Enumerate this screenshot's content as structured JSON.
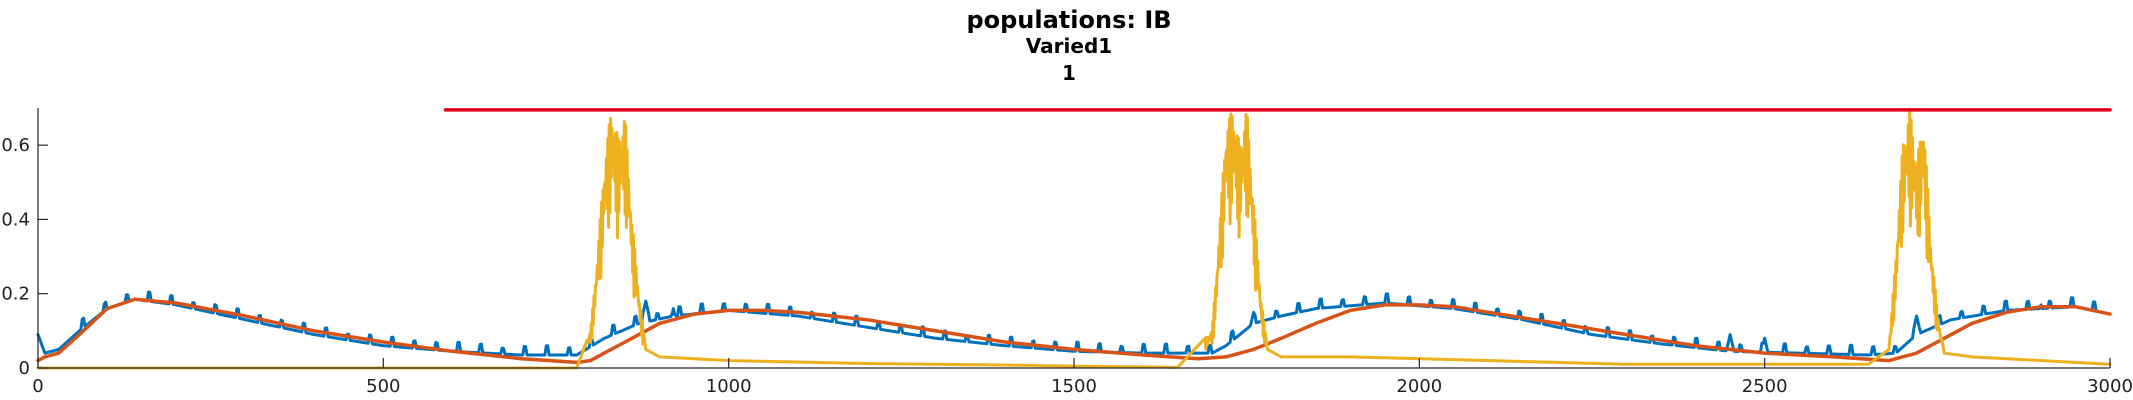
{
  "chart_data": {
    "type": "line",
    "title": "populations: IB",
    "subtitle_1": "Varied1",
    "subtitle_2": "1",
    "xlabel": "",
    "ylabel": "",
    "xlim": [
      0,
      3000
    ],
    "ylim": [
      0,
      0.7
    ],
    "grid": false,
    "legend": "none",
    "x_ticks": [
      0,
      500,
      1000,
      1500,
      2000,
      2500,
      3000
    ],
    "x_tick_labels": [
      "0",
      "500",
      "1000",
      "1500",
      "2000",
      "2500",
      "3000"
    ],
    "y_ticks": [
      0,
      0.2,
      0.4,
      0.6
    ],
    "y_tick_labels": [
      "0",
      "0.2",
      "0.4",
      "0.6"
    ],
    "series": [
      {
        "color": "#0072BD",
        "kind": "spiky",
        "x": [
          0,
          10,
          30,
          60,
          100,
          140,
          200,
          300,
          400,
          500,
          600,
          700,
          780,
          820,
          870,
          920,
          1000,
          1100,
          1200,
          1300,
          1400,
          1500,
          1600,
          1700,
          1720,
          1760,
          1800,
          1850,
          1950,
          2050,
          2150,
          2250,
          2350,
          2450,
          2550,
          2650,
          2690,
          2720,
          2770,
          2850,
          2950,
          3000
        ],
        "y": [
          0.09,
          0.04,
          0.05,
          0.1,
          0.16,
          0.185,
          0.17,
          0.13,
          0.09,
          0.06,
          0.045,
          0.035,
          0.035,
          0.08,
          0.12,
          0.14,
          0.155,
          0.14,
          0.11,
          0.08,
          0.06,
          0.045,
          0.04,
          0.04,
          0.06,
          0.12,
          0.14,
          0.16,
          0.175,
          0.16,
          0.13,
          0.09,
          0.065,
          0.045,
          0.04,
          0.035,
          0.04,
          0.09,
          0.13,
          0.155,
          0.165,
          0.145
        ],
        "spikes": [
          [
            880,
            0.18
          ],
          [
            920,
            0.16
          ],
          [
            1760,
            0.15
          ],
          [
            1850,
            0.16
          ],
          [
            2450,
            0.09
          ],
          [
            2500,
            0.08
          ],
          [
            2720,
            0.14
          ],
          [
            2900,
            0.17
          ]
        ]
      },
      {
        "color": "#D95319",
        "kind": "smooth",
        "x": [
          0,
          10,
          30,
          60,
          100,
          140,
          200,
          300,
          400,
          500,
          600,
          700,
          780,
          800,
          820,
          850,
          900,
          950,
          1000,
          1050,
          1100,
          1200,
          1300,
          1400,
          1500,
          1600,
          1680,
          1720,
          1760,
          1800,
          1850,
          1900,
          1950,
          2000,
          2050,
          2100,
          2200,
          2300,
          2400,
          2500,
          2600,
          2680,
          2720,
          2760,
          2800,
          2850,
          2900,
          2950,
          3000
        ],
        "y": [
          0.02,
          0.03,
          0.04,
          0.09,
          0.16,
          0.185,
          0.175,
          0.14,
          0.1,
          0.07,
          0.045,
          0.025,
          0.015,
          0.02,
          0.04,
          0.07,
          0.12,
          0.145,
          0.155,
          0.155,
          0.15,
          0.13,
          0.1,
          0.07,
          0.05,
          0.035,
          0.025,
          0.03,
          0.05,
          0.08,
          0.12,
          0.155,
          0.17,
          0.17,
          0.165,
          0.15,
          0.12,
          0.09,
          0.06,
          0.04,
          0.03,
          0.02,
          0.04,
          0.08,
          0.12,
          0.15,
          0.165,
          0.165,
          0.145
        ]
      },
      {
        "color": "#EDB120",
        "kind": "bursty",
        "x": [
          0,
          700,
          780,
          800,
          810,
          820,
          830,
          840,
          850,
          860,
          870,
          880,
          900,
          1000,
          1200,
          1400,
          1500,
          1650,
          1700,
          1710,
          1720,
          1730,
          1740,
          1750,
          1760,
          1770,
          1780,
          1800,
          1900,
          2100,
          2300,
          2500,
          2650,
          2680,
          2690,
          2700,
          2710,
          2720,
          2730,
          2740,
          2750,
          2760,
          2800,
          2900,
          3000
        ],
        "y": [
          0.0,
          0.0,
          0.0,
          0.1,
          0.3,
          0.55,
          0.7,
          0.62,
          0.68,
          0.4,
          0.2,
          0.05,
          0.03,
          0.02,
          0.012,
          0.008,
          0.005,
          0.002,
          0.1,
          0.35,
          0.65,
          0.7,
          0.6,
          0.7,
          0.45,
          0.2,
          0.05,
          0.03,
          0.03,
          0.02,
          0.01,
          0.01,
          0.01,
          0.05,
          0.3,
          0.6,
          0.7,
          0.55,
          0.68,
          0.35,
          0.15,
          0.04,
          0.03,
          0.02,
          0.01
        ]
      },
      {
        "color": "#E2001A",
        "kind": "flat",
        "x": [
          590,
          3000
        ],
        "y": [
          0.695,
          0.695
        ]
      }
    ]
  }
}
